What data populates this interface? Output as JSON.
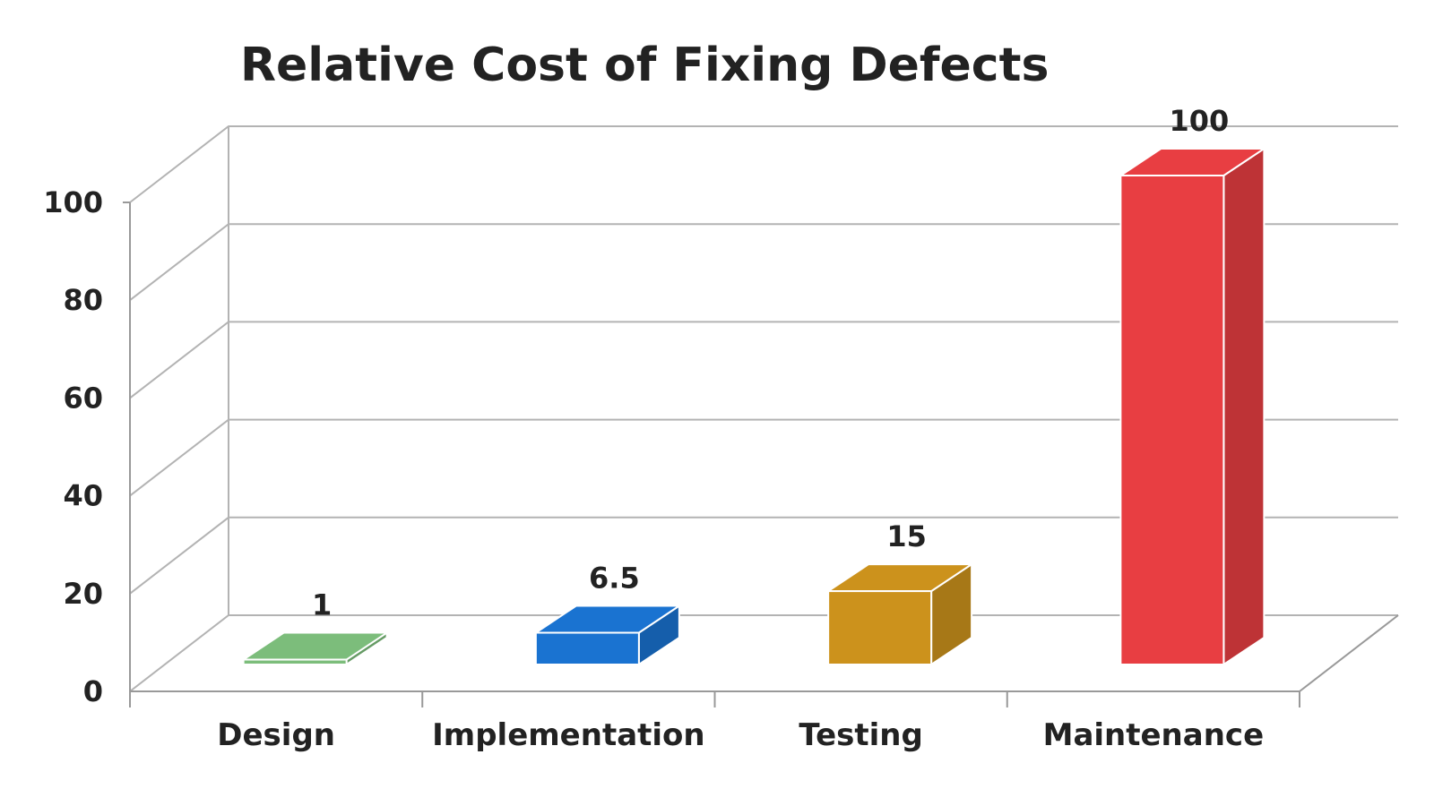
{
  "chart_data": {
    "type": "bar",
    "title": "Relative Cost of Fixing Defects",
    "categories": [
      "Design",
      "Implementation",
      "Testing",
      "Maintenance"
    ],
    "values": [
      1,
      6.5,
      15,
      100
    ],
    "data_labels": [
      "1",
      "6.5",
      "15",
      "100"
    ],
    "colors": [
      "#7cbd7b",
      "#1a73d1",
      "#cc921c",
      "#e83e42"
    ],
    "ylim": [
      0,
      100
    ],
    "yticks": [
      0,
      20,
      40,
      60,
      80,
      100
    ],
    "ytick_labels": [
      "0",
      "20",
      "40",
      "60",
      "80",
      "100"
    ],
    "xlabel": "",
    "ylabel": "",
    "grid": true,
    "legend": "none",
    "style": "3d-column"
  }
}
